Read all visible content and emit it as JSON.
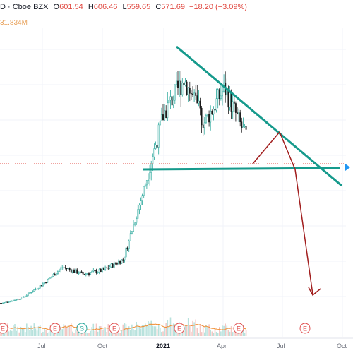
{
  "header": {
    "symbol_tail": "D",
    "exchange": "· Cboe BZX",
    "open_label": "O",
    "open": "601.54",
    "high_label": "H",
    "high": "606.46",
    "low_label": "L",
    "low": "559.65",
    "close_label": "C",
    "close": "571.69",
    "change": "−18.20 (−3.09%)",
    "volume": "31.834M"
  },
  "colors": {
    "up": "#26a69a",
    "down": "#1a1a1a",
    "trendline": "#169a8c",
    "projection": "#a11d1d",
    "volume_ma": "#f08c2e",
    "price_marker": "#2196f3",
    "event_badge": "#e05050",
    "split_badge": "#26a69a"
  },
  "chart_data": {
    "type": "candlestick",
    "x_axis_labels": [
      "Jul",
      "Oct",
      "2021",
      "Apr",
      "Jul",
      "Oct"
    ],
    "events": [
      "E",
      "E",
      "S",
      "E",
      "E",
      "E",
      "E",
      "E"
    ],
    "price_path_approx": [
      {
        "period": "2020-05",
        "price": 35
      },
      {
        "period": "2020-06",
        "price": 52
      },
      {
        "period": "2020-07",
        "price": 95
      },
      {
        "period": "2020-08",
        "price": 150
      },
      {
        "period": "2020-09",
        "price": 128
      },
      {
        "period": "2020-10",
        "price": 140
      },
      {
        "period": "2020-11",
        "price": 175
      },
      {
        "period": "2020-12",
        "price": 395
      },
      {
        "period": "2021-01",
        "price": 640
      },
      {
        "period": "2021-02",
        "price": 750
      },
      {
        "period": "2021-03",
        "price": 610
      },
      {
        "period": "2021-04",
        "price": 720
      },
      {
        "period": "2021-05",
        "price": 572
      }
    ],
    "annotations": [
      {
        "kind": "descending-trendline",
        "from": {
          "period": "2021-01",
          "price": 880
        },
        "to": {
          "period": "2021-09",
          "price": 560
        }
      },
      {
        "kind": "horizontal-support",
        "price": 570
      },
      {
        "kind": "projected-path",
        "points": [
          {
            "period": "2021-05",
            "price": 575
          },
          {
            "period": "2021-06",
            "price": 695
          },
          {
            "period": "2021-07",
            "price": 570
          },
          {
            "period": "2021-08",
            "price": 150
          }
        ]
      }
    ]
  }
}
